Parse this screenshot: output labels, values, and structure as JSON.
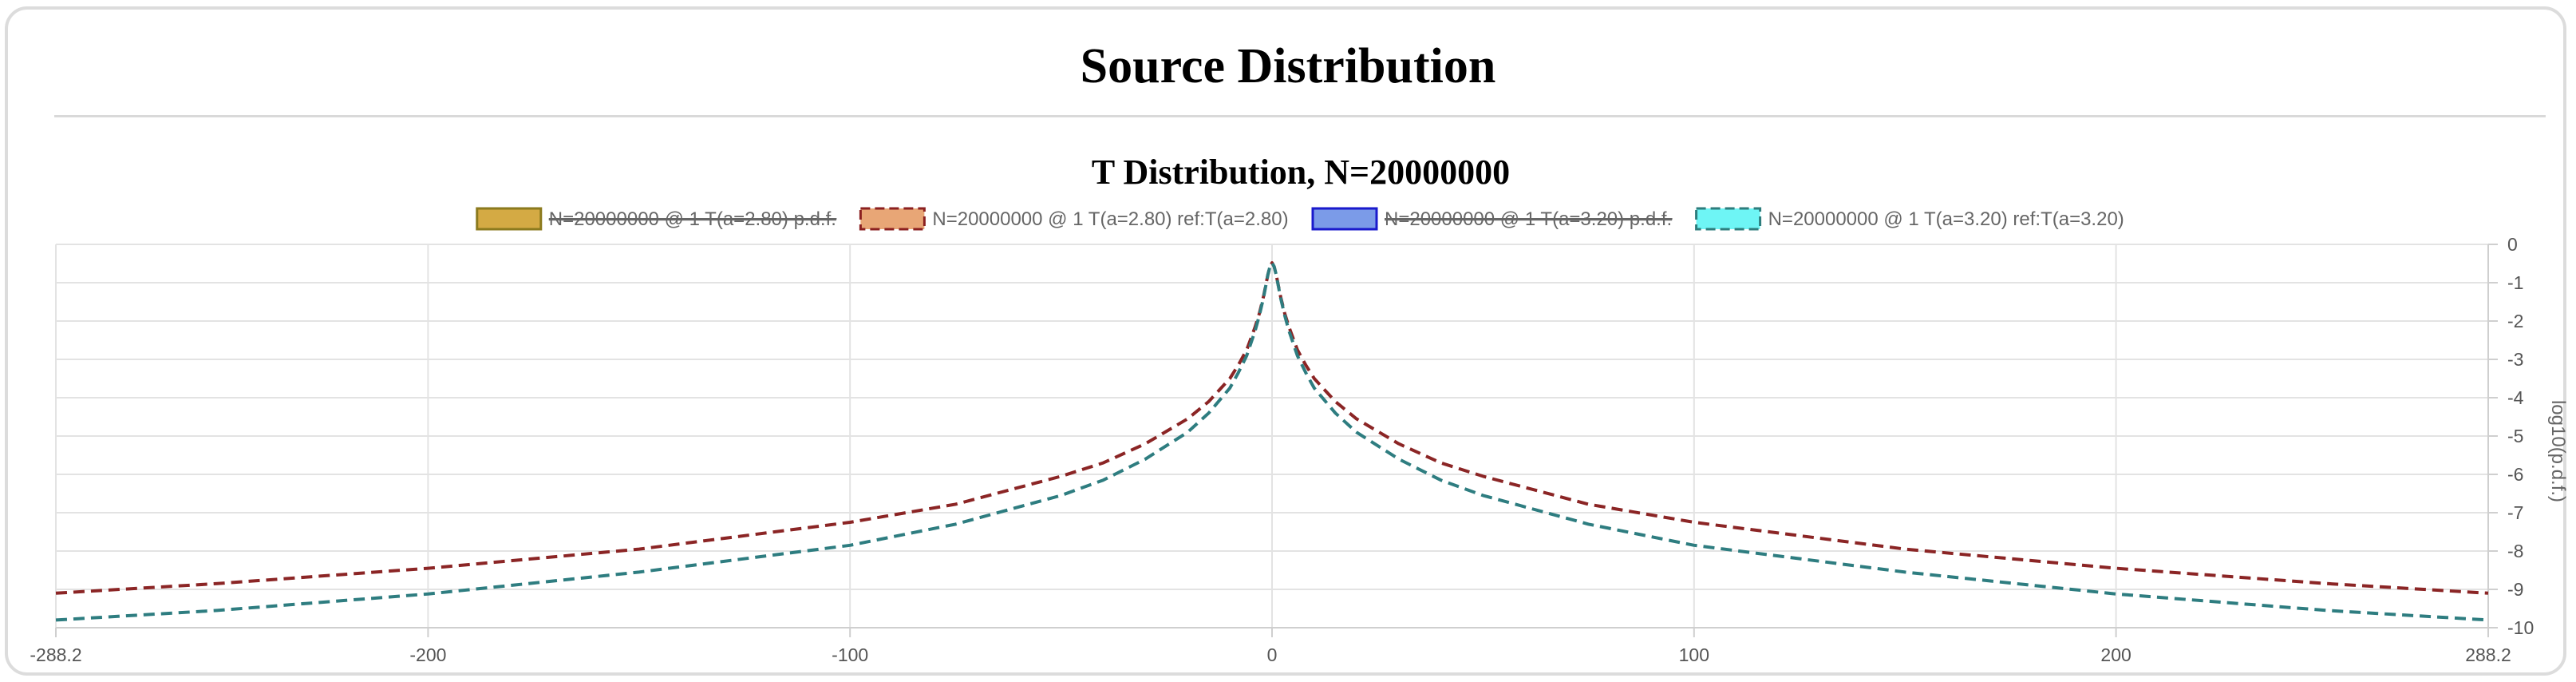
{
  "page": {
    "title": "Source Distribution"
  },
  "chart_data": {
    "type": "line",
    "title": "T Distribution, N=20000000",
    "xlabel": "",
    "ylabel": "log10(p.d.f.)",
    "xlim": [
      -288.2,
      288.2
    ],
    "ylim": [
      -10,
      0
    ],
    "x_ticks": [
      "-288.2",
      "-200",
      "-100",
      "0",
      "100",
      "200",
      "288.2"
    ],
    "x_tick_values": [
      -288.2,
      -200,
      -100,
      0,
      100,
      200,
      288.2
    ],
    "y_ticks": [
      "0",
      "-1",
      "-2",
      "-3",
      "-4",
      "-5",
      "-6",
      "-7",
      "-8",
      "-9",
      "-10"
    ],
    "y_tick_values": [
      0,
      -1,
      -2,
      -3,
      -4,
      -5,
      -6,
      -7,
      -8,
      -9,
      -10
    ],
    "grid": true,
    "legend_position": "top",
    "legend": [
      {
        "label": "N=20000000 @ 1 T(a=2.80) p.d.f.",
        "fill": "#d4aa44",
        "stroke": "#8b7a1e",
        "dashed": false,
        "hidden": true
      },
      {
        "label": "N=20000000 @ 1 T(a=2.80) ref:T(a=2.80)",
        "fill": "#e8a676",
        "stroke": "#8b2020",
        "dashed": true,
        "hidden": false
      },
      {
        "label": "N=20000000 @ 1 T(a=3.20) p.d.f.",
        "fill": "#7b9be8",
        "stroke": "#1a1acc",
        "dashed": false,
        "hidden": true
      },
      {
        "label": "N=20000000 @ 1 T(a=3.20) ref:T(a=3.20)",
        "fill": "#6ef5f5",
        "stroke": "#2e7d7d",
        "dashed": true,
        "hidden": false
      }
    ],
    "series": [
      {
        "name": "N=20000000 @ 1 T(a=2.80) ref:T(a=2.80)",
        "color": "#8b2525",
        "dashed": true,
        "x": [
          -288.2,
          -250,
          -200,
          -150,
          -100,
          -75,
          -50,
          -40,
          -30,
          -20,
          -15,
          -10,
          -8,
          -6,
          -4,
          -3,
          -2,
          -1,
          -0.5,
          0,
          0.5,
          1,
          2,
          3,
          4,
          6,
          8,
          10,
          15,
          20,
          30,
          40,
          50,
          75,
          100,
          150,
          200,
          250,
          288.2
        ],
        "y": [
          -9.1,
          -8.85,
          -8.45,
          -7.95,
          -7.25,
          -6.78,
          -6.05,
          -5.7,
          -5.2,
          -4.55,
          -4.1,
          -3.5,
          -3.15,
          -2.75,
          -2.15,
          -1.8,
          -1.35,
          -0.8,
          -0.58,
          -0.48,
          -0.58,
          -0.8,
          -1.35,
          -1.8,
          -2.15,
          -2.75,
          -3.15,
          -3.5,
          -4.1,
          -4.55,
          -5.2,
          -5.7,
          -6.05,
          -6.78,
          -7.25,
          -7.95,
          -8.45,
          -8.85,
          -9.1
        ]
      },
      {
        "name": "N=20000000 @ 1 T(a=3.20) ref:T(a=3.20)",
        "color": "#2e7d80",
        "dashed": true,
        "x": [
          -288.2,
          -250,
          -200,
          -150,
          -100,
          -75,
          -50,
          -40,
          -30,
          -20,
          -15,
          -10,
          -8,
          -6,
          -4,
          -3,
          -2,
          -1,
          -0.5,
          0,
          0.5,
          1,
          2,
          3,
          4,
          6,
          8,
          10,
          15,
          20,
          30,
          40,
          50,
          75,
          100,
          150,
          200,
          250,
          288.2
        ],
        "y": [
          -9.8,
          -9.55,
          -9.12,
          -8.55,
          -7.85,
          -7.3,
          -6.55,
          -6.15,
          -5.6,
          -4.9,
          -4.4,
          -3.75,
          -3.35,
          -2.9,
          -2.25,
          -1.85,
          -1.38,
          -0.8,
          -0.58,
          -0.48,
          -0.58,
          -0.8,
          -1.38,
          -1.85,
          -2.25,
          -2.9,
          -3.35,
          -3.75,
          -4.4,
          -4.9,
          -5.6,
          -6.15,
          -6.55,
          -7.3,
          -7.85,
          -8.55,
          -9.12,
          -9.55,
          -9.8
        ]
      }
    ]
  }
}
